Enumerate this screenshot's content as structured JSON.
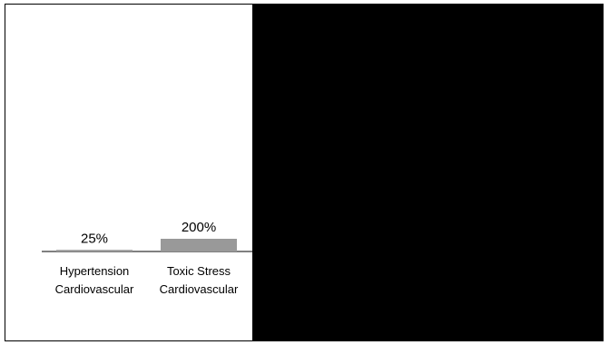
{
  "chart_data": {
    "type": "bar",
    "categories": [
      [
        "Hypertension",
        "Cardiovascular"
      ],
      [
        "Toxic Stress",
        "Cardiovascular"
      ]
    ],
    "values": [
      25,
      200
    ],
    "data_labels": [
      "25%",
      "200%"
    ],
    "bar_color": "#999999",
    "axis_color": "#000000",
    "grid": false
  },
  "panel_color": "#000000"
}
